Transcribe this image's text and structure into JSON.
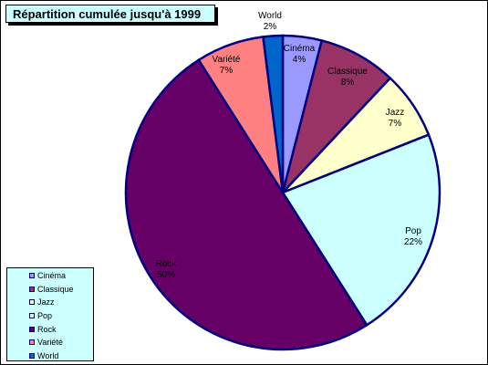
{
  "chart_data": {
    "type": "pie",
    "title": "Répartition cumulée jusqu'à 1999",
    "slices": [
      {
        "label": "Cinéma",
        "value": 4,
        "pct_label": "4%",
        "color": "#9999ff"
      },
      {
        "label": "Classique",
        "value": 8,
        "pct_label": "8%",
        "color": "#993366"
      },
      {
        "label": "Jazz",
        "value": 7,
        "pct_label": "7%",
        "color": "#ffffcc"
      },
      {
        "label": "Pop",
        "value": 22,
        "pct_label": "22%",
        "color": "#ccffff"
      },
      {
        "label": "Rock",
        "value": 50,
        "pct_label": "50%",
        "color": "#660066"
      },
      {
        "label": "Variété",
        "value": 7,
        "pct_label": "7%",
        "color": "#ff8080"
      },
      {
        "label": "World",
        "value": 2,
        "pct_label": "2%",
        "color": "#0066cc"
      }
    ],
    "outline_color": "#000080",
    "legend": {
      "position": "bottom-left"
    }
  }
}
